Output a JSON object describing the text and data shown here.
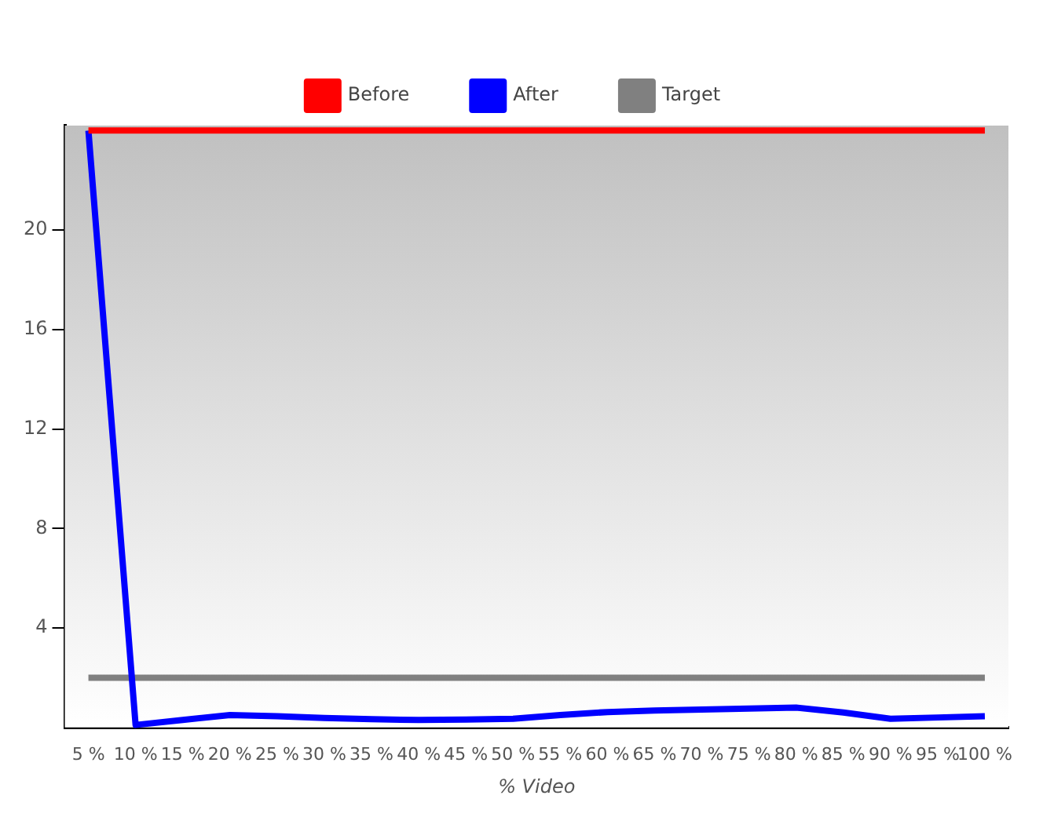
{
  "chart_data": {
    "type": "line",
    "xlabel": "% Video",
    "categories": [
      "5 %",
      "10 %",
      "15 %",
      "20 %",
      "25 %",
      "30 %",
      "35 %",
      "40 %",
      "45 %",
      "50 %",
      "55 %",
      "60 %",
      "65 %",
      "70 %",
      "75 %",
      "80 %",
      "85 %",
      "90 %",
      "95 %",
      "100 %"
    ],
    "series": [
      {
        "name": "Before",
        "color": "#ff0000",
        "values": [
          24,
          24,
          24,
          24,
          24,
          24,
          24,
          24,
          24,
          24,
          24,
          24,
          24,
          24,
          24,
          24,
          24,
          24,
          24,
          24
        ]
      },
      {
        "name": "After",
        "color": "#0000ff",
        "values": [
          24,
          0.1,
          0.3,
          0.5,
          0.45,
          0.38,
          0.33,
          0.3,
          0.32,
          0.35,
          0.5,
          0.62,
          0.68,
          0.72,
          0.76,
          0.8,
          0.6,
          0.35,
          0.4,
          0.45
        ]
      },
      {
        "name": "Target",
        "color": "#808080",
        "values": [
          2,
          2,
          2,
          2,
          2,
          2,
          2,
          2,
          2,
          2,
          2,
          2,
          2,
          2,
          2,
          2,
          2,
          2,
          2,
          2
        ]
      }
    ],
    "ylim": [
      0,
      24.2
    ],
    "yticks": [
      4,
      8,
      12,
      16,
      20
    ],
    "grid": false,
    "legend": "top",
    "marker": "none",
    "line_style": "solid"
  }
}
